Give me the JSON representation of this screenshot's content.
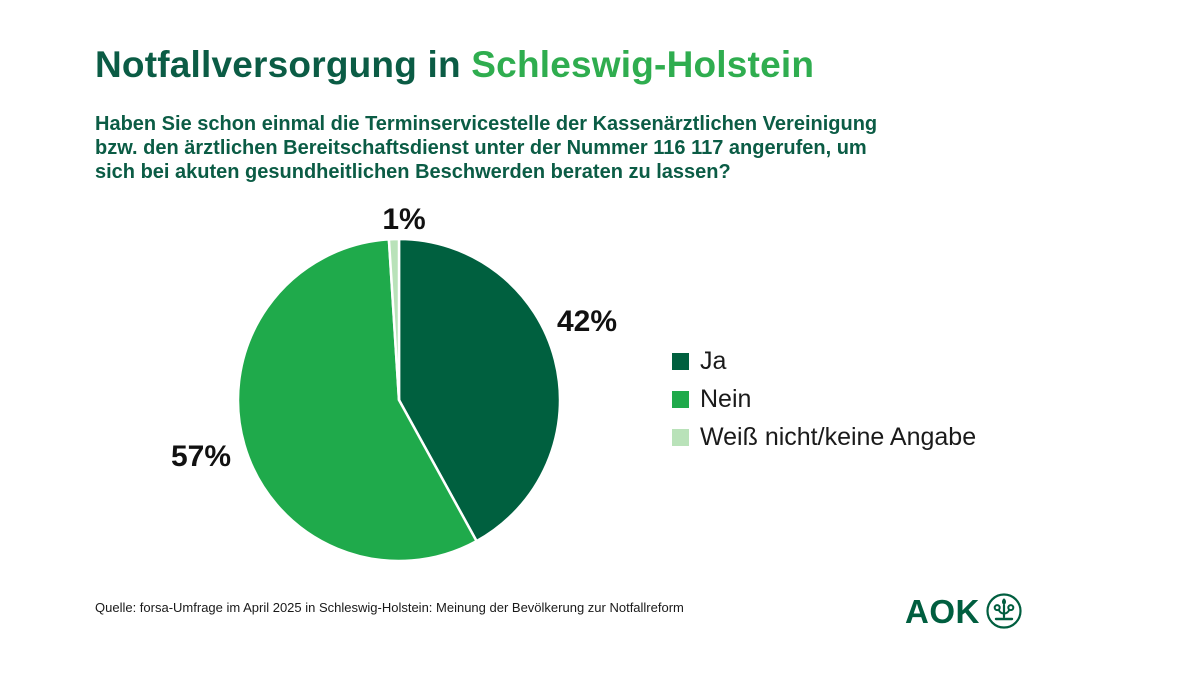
{
  "header": {
    "title_prefix": "Notfallversorgung in",
    "title_highlight": "Schleswig-Holstein",
    "question": "Haben Sie schon einmal die Terminservicestelle der Kassenärztlichen Vereinigung\nbzw. den ärztlichen Bereitschaftsdienst unter der Nummer 116 117 angerufen, um\nsich bei akuten gesundheitlichen Beschwerden beraten zu lassen?"
  },
  "chart_data": {
    "type": "pie",
    "title": "Notfallversorgung in Schleswig-Holstein",
    "categories": [
      "Ja",
      "Nein",
      "Weiß nicht/keine Angabe"
    ],
    "values": [
      42,
      57,
      1
    ],
    "formatted_values": [
      "42%",
      "57%",
      "1%"
    ],
    "colors": [
      "#00603f",
      "#1faa4b",
      "#b9e2b9"
    ],
    "start_angle_deg": 0,
    "direction": "clockwise",
    "legend_position": "right",
    "slice_border_color": "#ffffff"
  },
  "footer": {
    "source": "Quelle: forsa-Umfrage im April 2025 in Schleswig-Holstein: Meinung der Bevölkerung zur Notfallreform",
    "logo_text": "AOK"
  },
  "colors": {
    "title_dark_green": "#0b5c45",
    "title_accent_green": "#2fad4f",
    "slice_dark_green": "#00603f",
    "slice_bright_green": "#1faa4b",
    "slice_light_green": "#b9e2b9",
    "logo_green": "#005e3f",
    "text_black": "#1a1a1a",
    "background": "#ffffff"
  }
}
